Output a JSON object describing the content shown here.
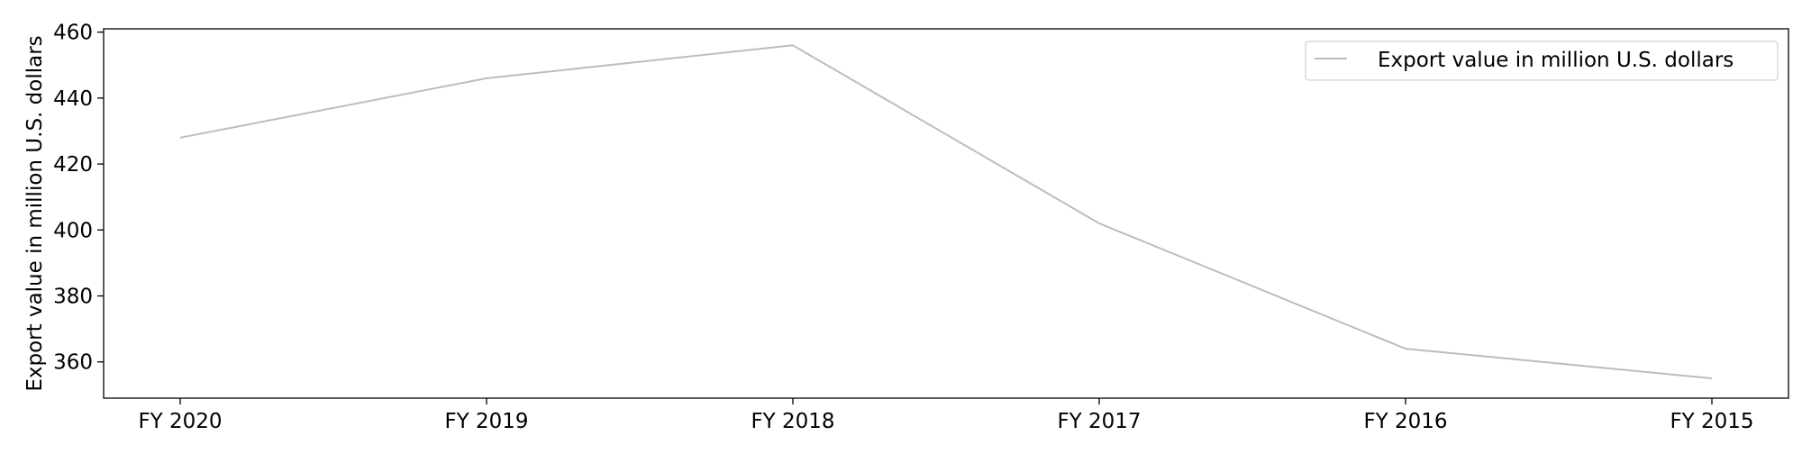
{
  "chart_data": {
    "type": "line",
    "categories": [
      "FY 2020",
      "FY 2019",
      "FY 2018",
      "FY 2017",
      "FY 2016",
      "FY 2015"
    ],
    "series": [
      {
        "name": "Export value in million U.S. dollars",
        "values": [
          428,
          446,
          456,
          402,
          364,
          355
        ],
        "color": "#bdbdbd"
      }
    ],
    "xlabel": "",
    "ylabel": "Export value in million U.S. dollars",
    "ylim": [
      349,
      461
    ],
    "yticks": [
      360,
      380,
      400,
      420,
      440,
      460
    ],
    "grid": false,
    "legend_position": "top-right"
  }
}
